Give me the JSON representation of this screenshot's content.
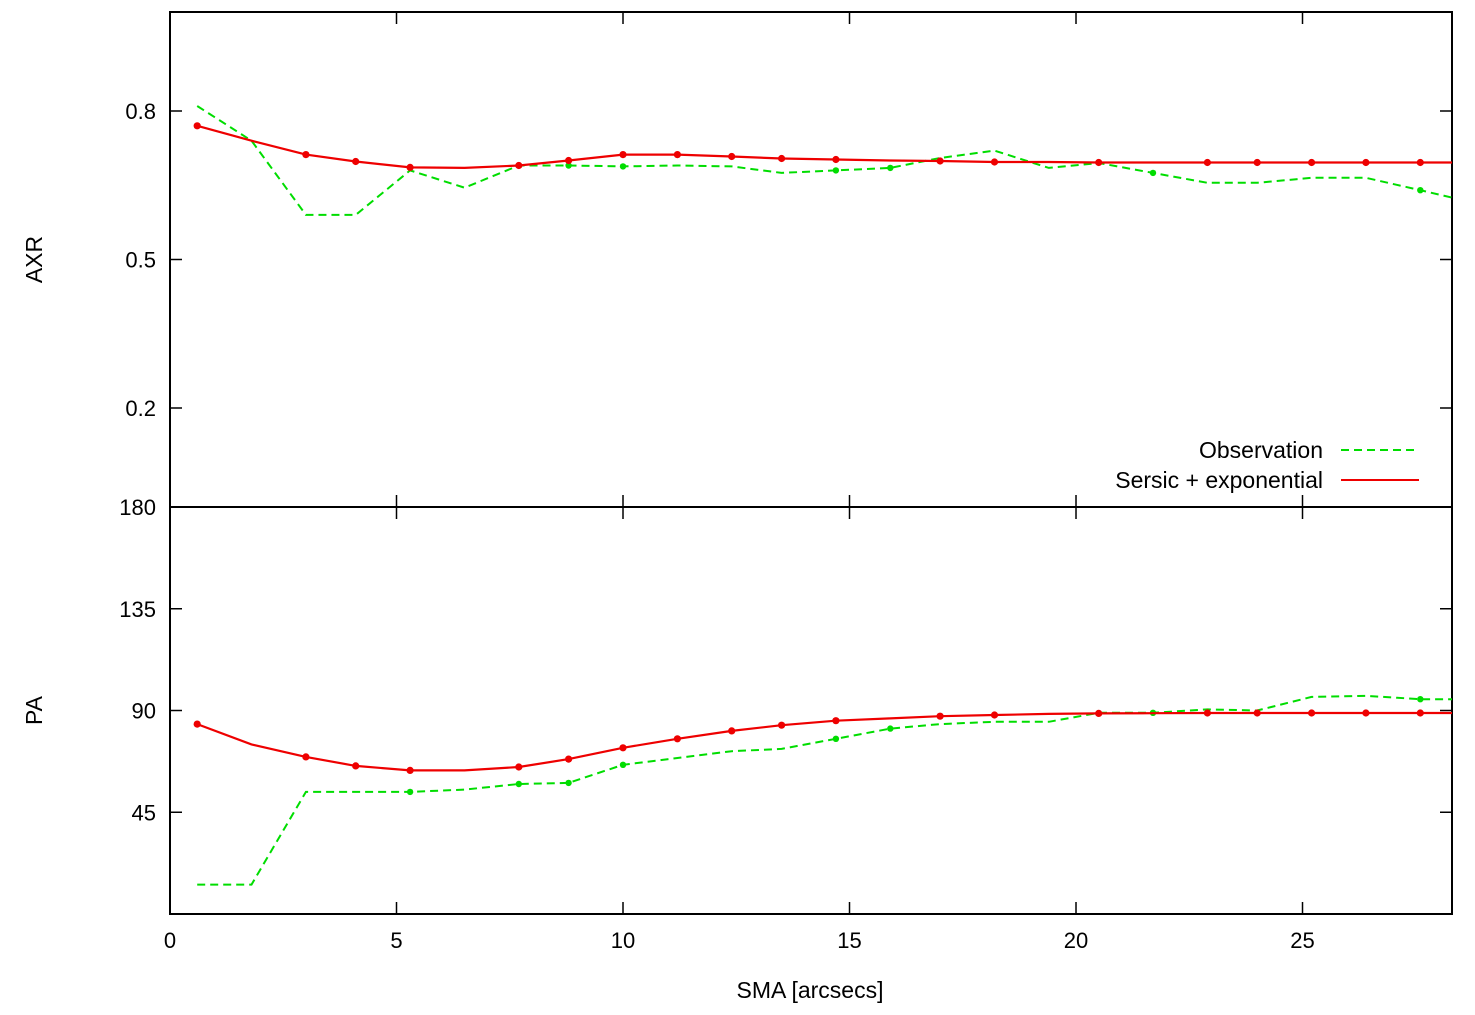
{
  "chart_data": [
    {
      "type": "line",
      "panel": "top",
      "ylabel": "AXR",
      "ylim": [
        0,
        1
      ],
      "yticks": [
        0.2,
        0.5,
        0.8
      ],
      "xlim": [
        0,
        28.3
      ],
      "xticks": [
        0,
        5,
        10,
        15,
        20,
        25
      ],
      "legend_position": "bottom-right",
      "series": [
        {
          "name": "Observation",
          "color": "#00dd00",
          "dash": "dashed",
          "x": [
            0.6,
            1.8,
            3.0,
            4.1,
            5.3,
            6.5,
            7.7,
            8.8,
            10.0,
            11.2,
            12.4,
            13.5,
            14.7,
            15.9,
            17.0,
            18.2,
            19.4,
            20.5,
            21.7,
            22.9,
            24.0,
            25.2,
            26.4,
            27.6,
            28.3
          ],
          "y": [
            0.81,
            0.74,
            0.59,
            0.59,
            0.68,
            0.645,
            0.69,
            0.69,
            0.688,
            0.69,
            0.688,
            0.675,
            0.68,
            0.685,
            0.705,
            0.72,
            0.685,
            0.695,
            0.675,
            0.655,
            0.655,
            0.665,
            0.665,
            0.64,
            0.625
          ],
          "markers_x": [
            7.7,
            8.8,
            10.0,
            14.7,
            15.9,
            21.7,
            27.6
          ]
        },
        {
          "name": "Sersic + exponential",
          "color": "#ee0000",
          "dash": "solid",
          "x": [
            0.6,
            1.8,
            3.0,
            4.1,
            5.3,
            6.5,
            7.7,
            8.8,
            10.0,
            11.2,
            12.4,
            13.5,
            14.7,
            15.9,
            17.0,
            18.2,
            19.4,
            20.5,
            21.7,
            22.9,
            24.0,
            25.2,
            26.4,
            27.6,
            28.3
          ],
          "y": [
            0.77,
            0.74,
            0.712,
            0.698,
            0.686,
            0.685,
            0.69,
            0.7,
            0.712,
            0.712,
            0.708,
            0.704,
            0.702,
            0.7,
            0.699,
            0.697,
            0.697,
            0.696,
            0.696,
            0.696,
            0.696,
            0.696,
            0.696,
            0.696,
            0.696
          ],
          "markers_x": [
            0.6,
            3.0,
            4.1,
            5.3,
            7.7,
            8.8,
            10.0,
            11.2,
            12.4,
            13.5,
            14.7,
            17.0,
            18.2,
            20.5,
            22.9,
            24.0,
            25.2,
            26.4,
            27.6
          ]
        }
      ]
    },
    {
      "type": "line",
      "panel": "bottom",
      "ylabel": "PA",
      "xlabel": "SMA [arcsecs]",
      "ylim": [
        0,
        180
      ],
      "yticks": [
        45,
        90,
        135,
        180
      ],
      "xlim": [
        0,
        28.3
      ],
      "xticks": [
        0,
        5,
        10,
        15,
        20,
        25
      ],
      "series": [
        {
          "name": "Observation",
          "color": "#00dd00",
          "dash": "dashed",
          "x": [
            0.6,
            1.8,
            3.0,
            4.1,
            5.3,
            6.5,
            7.7,
            8.8,
            10.0,
            11.2,
            12.4,
            13.5,
            14.7,
            15.9,
            17.0,
            18.2,
            19.4,
            20.5,
            21.7,
            22.9,
            24.0,
            25.2,
            26.4,
            27.6,
            28.3
          ],
          "y": [
            13,
            13,
            54,
            54,
            54,
            55,
            57.5,
            58,
            66,
            69,
            72,
            73,
            77.5,
            82,
            84,
            85,
            85,
            89,
            89,
            90.5,
            90,
            96,
            96.5,
            95,
            95
          ],
          "markers_x": [
            5.3,
            7.7,
            8.8,
            10.0,
            14.7,
            15.9,
            21.7,
            27.6
          ]
        },
        {
          "name": "Sersic + exponential",
          "color": "#ee0000",
          "dash": "solid",
          "x": [
            0.6,
            1.8,
            3.0,
            4.1,
            5.3,
            6.5,
            7.7,
            8.8,
            10.0,
            11.2,
            12.4,
            13.5,
            14.7,
            15.9,
            17.0,
            18.2,
            19.4,
            20.5,
            21.7,
            22.9,
            24.0,
            25.2,
            26.4,
            27.6,
            28.3
          ],
          "y": [
            84,
            75,
            69.5,
            65.5,
            63.5,
            63.5,
            65,
            68.5,
            73.5,
            77.5,
            81,
            83.5,
            85.5,
            86.5,
            87.5,
            88,
            88.5,
            88.7,
            88.8,
            88.9,
            88.9,
            88.9,
            88.9,
            88.9,
            88.9
          ],
          "markers_x": [
            0.6,
            3.0,
            4.1,
            5.3,
            7.7,
            8.8,
            10.0,
            11.2,
            12.4,
            13.5,
            14.7,
            17.0,
            18.2,
            20.5,
            22.9,
            24.0,
            25.2,
            26.4,
            27.6
          ]
        }
      ]
    }
  ]
}
